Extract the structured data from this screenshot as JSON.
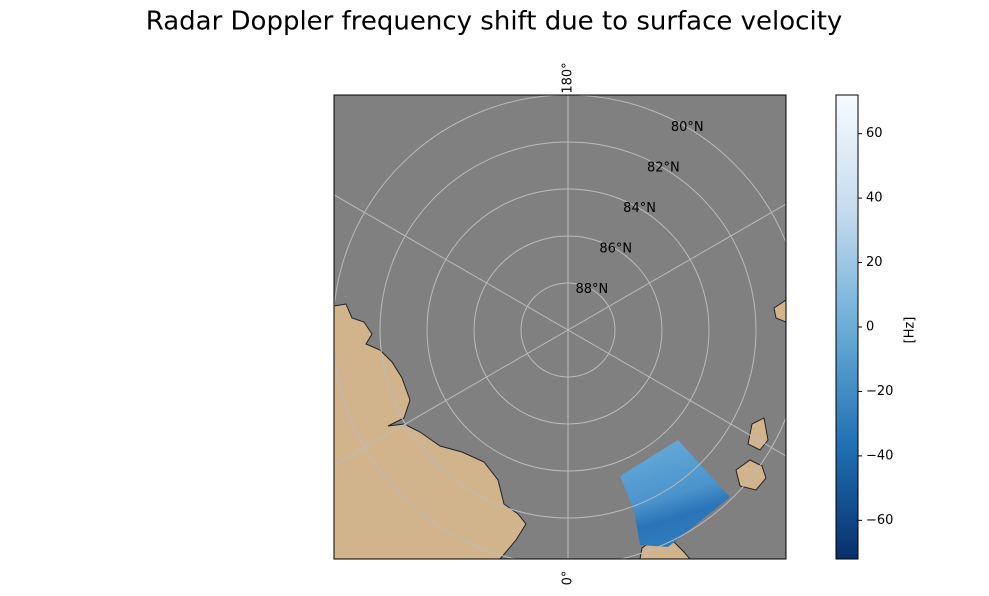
{
  "title": "Radar Doppler frequency shift due to surface velocity",
  "map": {
    "parallels": [
      {
        "value": 88,
        "label": "88°N"
      },
      {
        "value": 86,
        "label": "86°N"
      },
      {
        "value": 84,
        "label": "84°N"
      },
      {
        "value": 82,
        "label": "82°N"
      },
      {
        "value": 80,
        "label": "80°N"
      }
    ],
    "meridian_labels": {
      "top": "180°",
      "bottom": "0°"
    }
  },
  "colorbar": {
    "label": "[Hz]",
    "lim": [
      -72,
      72
    ],
    "ticks": [
      {
        "value": -60,
        "label": "−60"
      },
      {
        "value": -40,
        "label": "−40"
      },
      {
        "value": -20,
        "label": "−20"
      },
      0,
      20,
      40,
      60
    ]
  }
}
